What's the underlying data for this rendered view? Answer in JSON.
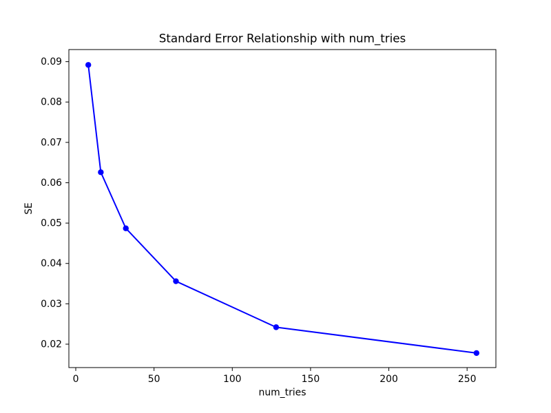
{
  "chart_data": {
    "type": "line",
    "title": "Standard Error Relationship with num_tries",
    "xlabel": "num_tries",
    "ylabel": "SE",
    "series": [
      {
        "name": "SE",
        "x": [
          8,
          16,
          32,
          64,
          128,
          256
        ],
        "y": [
          0.0892,
          0.0626,
          0.0487,
          0.0356,
          0.0242,
          0.0178
        ]
      }
    ],
    "x_ticks": [
      0,
      50,
      100,
      150,
      200,
      250
    ],
    "y_ticks": [
      0.02,
      0.03,
      0.04,
      0.05,
      0.06,
      0.07,
      0.08,
      0.09
    ],
    "y_tick_decimals": 2,
    "xlim": [
      -4.4,
      268.4
    ],
    "ylim": [
      0.0142,
      0.093
    ],
    "grid": false,
    "legend_visible": false,
    "line_color": "#0000ff",
    "marker": "circle",
    "marker_color": "#0000ff",
    "spine_color": "#000000",
    "background_color": "#ffffff",
    "text_color": "#000000"
  }
}
